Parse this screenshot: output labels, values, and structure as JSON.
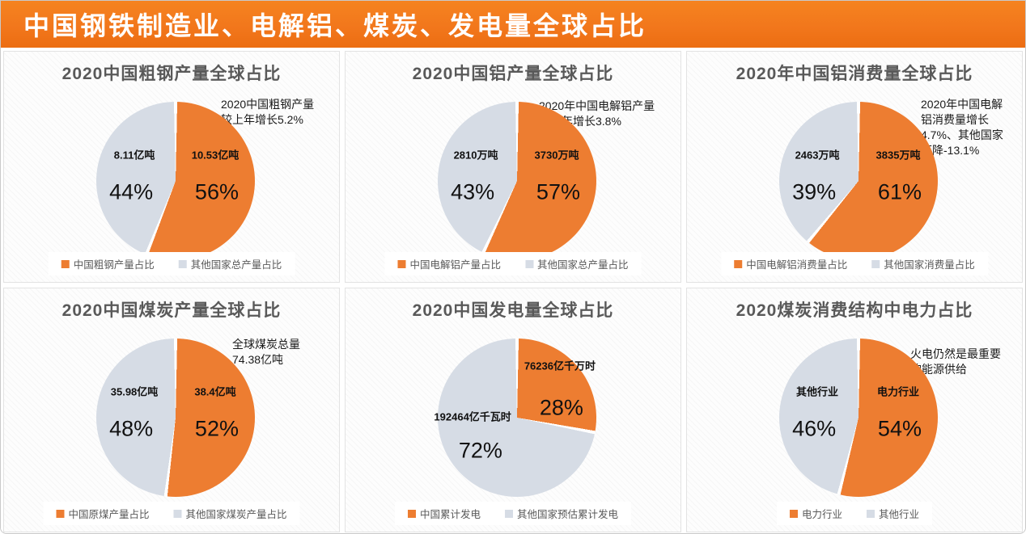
{
  "header": {
    "title": "中国钢铁制造业、电解铝、煤炭、发电量全球占比"
  },
  "colors": {
    "header_bg": "#F2771C",
    "china_orange": "#ED7D31",
    "other_gray": "#D6DCE5",
    "title_gray": "#595959"
  },
  "chart_data": [
    {
      "type": "pie",
      "title": "2020中国粗钢产量全球占比",
      "annotation": "2020中国粗钢产量\n较上年增长5.2%",
      "categories": [
        "中国粗钢产量占比",
        "其他国家总产量占比"
      ],
      "values": [
        56,
        44
      ],
      "pct_labels": [
        "56%",
        "44%"
      ],
      "slice_labels": [
        "10.53亿吨",
        "8.11亿吨"
      ],
      "colors": [
        "#ED7D31",
        "#D6DCE5"
      ],
      "legend_position": "bottom"
    },
    {
      "type": "pie",
      "title": "2020中国铝产量全球占比",
      "annotation": "2020年中国电解铝产量\n较上年增长3.8%",
      "categories": [
        "中国电解铝产量占比",
        "其他国家总产量占比"
      ],
      "values": [
        57,
        43
      ],
      "pct_labels": [
        "57%",
        "43%"
      ],
      "slice_labels": [
        "3730万吨",
        "2810万吨"
      ],
      "colors": [
        "#ED7D31",
        "#D6DCE5"
      ],
      "legend_position": "bottom"
    },
    {
      "type": "pie",
      "title": "2020年中国铝消费量全球占比",
      "annotation": "2020年中国电解\n铝消费量增长\n4.7%、其他国家\n下降-13.1%",
      "categories": [
        "中国电解铝消费量占比",
        "其他国家消费量占比"
      ],
      "values": [
        61,
        39
      ],
      "pct_labels": [
        "61%",
        "39%"
      ],
      "slice_labels": [
        "3835万吨",
        "2463万吨"
      ],
      "colors": [
        "#ED7D31",
        "#D6DCE5"
      ],
      "legend_position": "bottom"
    },
    {
      "type": "pie",
      "title": "2020中国煤炭产量全球占比",
      "annotation": "全球煤炭总量\n74.38亿吨",
      "categories": [
        "中国原煤产量占比",
        "其他国家煤炭产量占比"
      ],
      "values": [
        52,
        48
      ],
      "pct_labels": [
        "52%",
        "48%"
      ],
      "slice_labels": [
        "38.4亿吨",
        "35.98亿吨"
      ],
      "colors": [
        "#ED7D31",
        "#D6DCE5"
      ],
      "legend_position": "bottom"
    },
    {
      "type": "pie",
      "title": "2020中国发电量全球占比",
      "categories": [
        "中国累计发电",
        "其他国家预估累计发电"
      ],
      "values": [
        28,
        72
      ],
      "pct_labels": [
        "28%",
        "72%"
      ],
      "slice_labels": [
        "76236亿千万时",
        "192464亿千瓦时"
      ],
      "colors": [
        "#ED7D31",
        "#D6DCE5"
      ],
      "legend_position": "bottom"
    },
    {
      "type": "pie",
      "title": "2020煤炭消费结构中电力占比",
      "annotation": "火电仍然是最重要\n的能源供给",
      "categories": [
        "电力行业",
        "其他行业"
      ],
      "values": [
        54,
        46
      ],
      "pct_labels": [
        "54%",
        "46%"
      ],
      "slice_labels": [
        "电力行业",
        "其他行业"
      ],
      "colors": [
        "#ED7D31",
        "#D6DCE5"
      ],
      "legend_position": "bottom"
    }
  ]
}
